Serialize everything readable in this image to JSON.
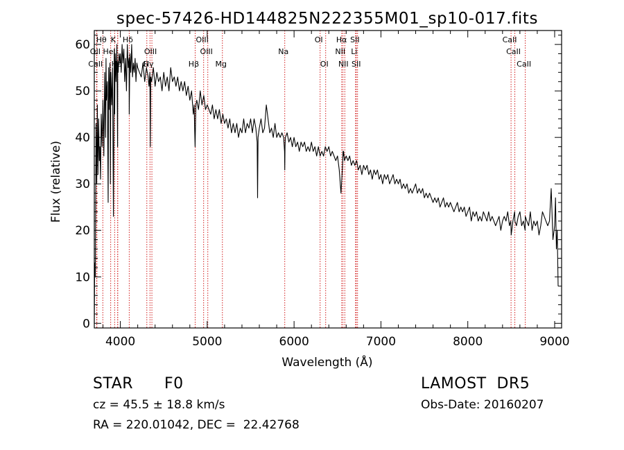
{
  "chart_data": {
    "type": "line",
    "title": "spec-57426-HD144825N222355M01_sp10-017.fits",
    "xlabel": "Wavelength (Å)",
    "ylabel": "Flux (relative)",
    "xlim": [
      3700,
      9080
    ],
    "ylim": [
      -1,
      63
    ],
    "xticks": [
      4000,
      5000,
      6000,
      7000,
      8000,
      9000
    ],
    "yticks": [
      0,
      10,
      20,
      30,
      40,
      50,
      60
    ],
    "grid": false,
    "series": [
      {
        "x": [
          3700,
          3705,
          3712,
          3720,
          3728,
          3735,
          3742,
          3750,
          3758,
          3765,
          3772,
          3780,
          3790,
          3800,
          3810,
          3820,
          3830,
          3835,
          3840,
          3850,
          3860,
          3865,
          3870,
          3880,
          3885,
          3890,
          3900,
          3910,
          3920,
          3930,
          3935,
          3940,
          3950,
          3960,
          3968,
          3970,
          3975,
          3985,
          3995,
          4000,
          4010,
          4020,
          4030,
          4040,
          4050,
          4060,
          4070,
          4080,
          4090,
          4100,
          4102,
          4110,
          4120,
          4130,
          4140,
          4150,
          4160,
          4170,
          4180,
          4190,
          4200,
          4220,
          4240,
          4260,
          4280,
          4300,
          4320,
          4330,
          4340,
          4345,
          4350,
          4360,
          4380,
          4400,
          4420,
          4440,
          4460,
          4480,
          4500,
          4520,
          4540,
          4560,
          4580,
          4600,
          4620,
          4640,
          4660,
          4680,
          4700,
          4720,
          4740,
          4760,
          4780,
          4800,
          4820,
          4840,
          4850,
          4855,
          4861,
          4866,
          4870,
          4880,
          4900,
          4920,
          4940,
          4960,
          4980,
          5000,
          5020,
          5040,
          5060,
          5080,
          5100,
          5120,
          5140,
          5160,
          5180,
          5200,
          5220,
          5240,
          5260,
          5280,
          5300,
          5320,
          5340,
          5360,
          5380,
          5400,
          5420,
          5440,
          5460,
          5480,
          5500,
          5520,
          5540,
          5560,
          5575,
          5580,
          5585,
          5600,
          5620,
          5640,
          5660,
          5680,
          5700,
          5720,
          5740,
          5760,
          5780,
          5800,
          5820,
          5840,
          5860,
          5880,
          5890,
          5893,
          5896,
          5900,
          5920,
          5940,
          5960,
          5980,
          6000,
          6020,
          6040,
          6060,
          6080,
          6100,
          6120,
          6140,
          6160,
          6180,
          6200,
          6220,
          6240,
          6260,
          6280,
          6300,
          6320,
          6340,
          6360,
          6380,
          6400,
          6420,
          6440,
          6460,
          6480,
          6500,
          6520,
          6540,
          6555,
          6560,
          6563,
          6566,
          6570,
          6580,
          6600,
          6620,
          6640,
          6660,
          6680,
          6700,
          6720,
          6740,
          6760,
          6780,
          6800,
          6820,
          6840,
          6860,
          6880,
          6900,
          6920,
          6940,
          6960,
          6980,
          7000,
          7020,
          7040,
          7060,
          7080,
          7100,
          7120,
          7140,
          7160,
          7180,
          7200,
          7220,
          7240,
          7260,
          7280,
          7300,
          7320,
          7340,
          7360,
          7380,
          7400,
          7420,
          7440,
          7460,
          7480,
          7500,
          7520,
          7540,
          7560,
          7580,
          7600,
          7620,
          7640,
          7660,
          7680,
          7700,
          7720,
          7740,
          7760,
          7780,
          7800,
          7820,
          7840,
          7860,
          7880,
          7900,
          7920,
          7940,
          7960,
          7980,
          8000,
          8020,
          8040,
          8060,
          8080,
          8100,
          8120,
          8140,
          8160,
          8180,
          8200,
          8220,
          8240,
          8260,
          8280,
          8300,
          8320,
          8340,
          8360,
          8380,
          8400,
          8420,
          8440,
          8460,
          8480,
          8495,
          8500,
          8520,
          8540,
          8542,
          8560,
          8580,
          8600,
          8620,
          8640,
          8660,
          8662,
          8680,
          8700,
          8720,
          8740,
          8760,
          8780,
          8800,
          8820,
          8840,
          8860,
          8880,
          8900,
          8920,
          8940,
          8960,
          8980,
          9000,
          9010,
          9020,
          9030,
          9040
        ],
        "values": [
          0,
          13,
          10,
          43,
          30,
          47,
          32,
          44,
          35,
          38,
          31,
          45,
          38,
          48,
          36,
          54,
          40,
          57,
          48,
          52,
          26,
          55,
          46,
          56,
          30,
          54,
          47,
          55,
          23,
          59,
          45,
          58,
          52,
          60,
          38,
          56,
          54,
          58,
          56,
          58,
          54,
          60,
          56,
          59,
          52,
          57,
          50,
          60,
          55,
          57,
          45,
          58,
          54,
          60,
          53,
          56,
          54,
          57,
          52,
          56,
          55,
          54,
          53,
          56,
          52,
          55,
          53,
          51,
          54,
          38,
          53,
          52,
          55,
          51,
          54,
          52,
          53,
          50,
          54,
          51,
          53,
          50,
          55,
          52,
          53,
          51,
          53,
          50,
          52,
          50,
          52,
          49,
          51,
          48,
          50,
          45,
          47,
          42,
          38,
          44,
          47,
          48,
          46,
          50,
          47,
          49,
          46,
          47,
          46,
          45,
          47,
          44,
          46,
          44,
          46,
          43,
          45,
          43,
          44,
          42,
          44,
          41,
          43,
          41,
          43,
          40,
          42,
          41,
          44,
          41,
          43,
          42,
          44,
          41,
          44,
          42,
          39,
          27,
          40,
          42,
          44,
          41,
          42,
          47,
          44,
          41,
          42,
          40,
          43,
          40,
          41,
          40,
          41,
          40,
          37,
          33,
          38,
          40,
          41,
          39,
          40,
          38,
          40,
          38,
          39,
          37,
          39,
          38,
          39,
          37,
          38,
          37,
          39,
          37,
          38,
          36,
          38,
          36,
          37,
          36,
          38,
          37,
          38,
          36,
          37,
          36,
          35,
          36,
          33,
          28,
          33,
          35,
          37,
          36,
          37,
          35,
          36,
          35,
          36,
          34,
          35,
          34,
          35,
          33,
          34,
          32,
          34,
          33,
          34,
          32,
          33,
          31,
          33,
          32,
          33,
          31,
          32,
          30,
          32,
          31,
          32,
          30,
          31,
          32,
          30,
          31,
          30,
          31,
          29,
          30,
          29,
          30,
          28,
          29,
          28,
          29,
          30,
          28,
          29,
          28,
          29,
          27,
          28,
          27,
          28,
          27,
          26,
          27,
          26,
          27,
          25,
          26,
          27,
          25,
          26,
          25,
          26,
          25,
          24,
          25,
          26,
          24,
          25,
          24,
          25,
          23,
          24,
          25,
          22,
          24,
          23,
          24,
          22,
          23,
          22,
          24,
          23,
          22,
          24,
          22,
          23,
          22,
          21,
          22,
          23,
          20,
          22,
          23,
          22,
          24,
          21,
          22,
          19,
          22,
          24,
          22,
          21,
          23,
          24,
          21,
          22,
          20,
          23,
          22,
          21,
          24,
          20,
          22,
          21,
          22,
          19,
          21,
          24,
          23,
          22,
          21,
          22,
          29,
          18,
          21,
          27,
          16,
          20,
          8
        ]
      }
    ],
    "line_markers": [
      {
        "label": "Hθ",
        "x": 3798
      },
      {
        "label": "K",
        "x": 3934
      },
      {
        "label": "Hδ",
        "x": 4102
      },
      {
        "label": "OII",
        "x": 3727
      },
      {
        "label": "HeI",
        "x": 3889
      },
      {
        "label": "OIII",
        "x": 4363
      },
      {
        "label": "Hγ",
        "x": 4341
      },
      {
        "label": "CaII",
        "x": 3730
      },
      {
        "label": "Hε",
        "x": 3970
      },
      {
        "label": "H",
        "x": 3969
      },
      {
        "label": "G",
        "x": 4305
      },
      {
        "label": "OIII",
        "x": 4959
      },
      {
        "label": "OIII",
        "x": 5007
      },
      {
        "label": "Hβ",
        "x": 4861
      },
      {
        "label": "Mg",
        "x": 5175
      },
      {
        "label": "Na",
        "x": 5893
      },
      {
        "label": "OI",
        "x": 6300
      },
      {
        "label": "OI",
        "x": 6364
      },
      {
        "label": "Hα",
        "x": 6563
      },
      {
        "label": "NII",
        "x": 6548
      },
      {
        "label": "NII",
        "x": 6584
      },
      {
        "label": "SII",
        "x": 6716
      },
      {
        "label": "Li",
        "x": 6708
      },
      {
        "label": "SII",
        "x": 6731
      },
      {
        "label": "CaII",
        "x": 8498
      },
      {
        "label": "CaII",
        "x": 8542
      },
      {
        "label": "CaII",
        "x": 8662
      }
    ],
    "line_colors": {
      "spectrum": "#000000",
      "marker": "#cc0000"
    }
  },
  "info": {
    "object_class": "STAR",
    "subclass": "F0",
    "survey": "LAMOST  DR5",
    "redshift": "cz = 45.5 ± 18.8 km/s",
    "obs_date": "Obs-Date: 20160207",
    "coords": "RA = 220.01042, DEC =  22.42768"
  }
}
